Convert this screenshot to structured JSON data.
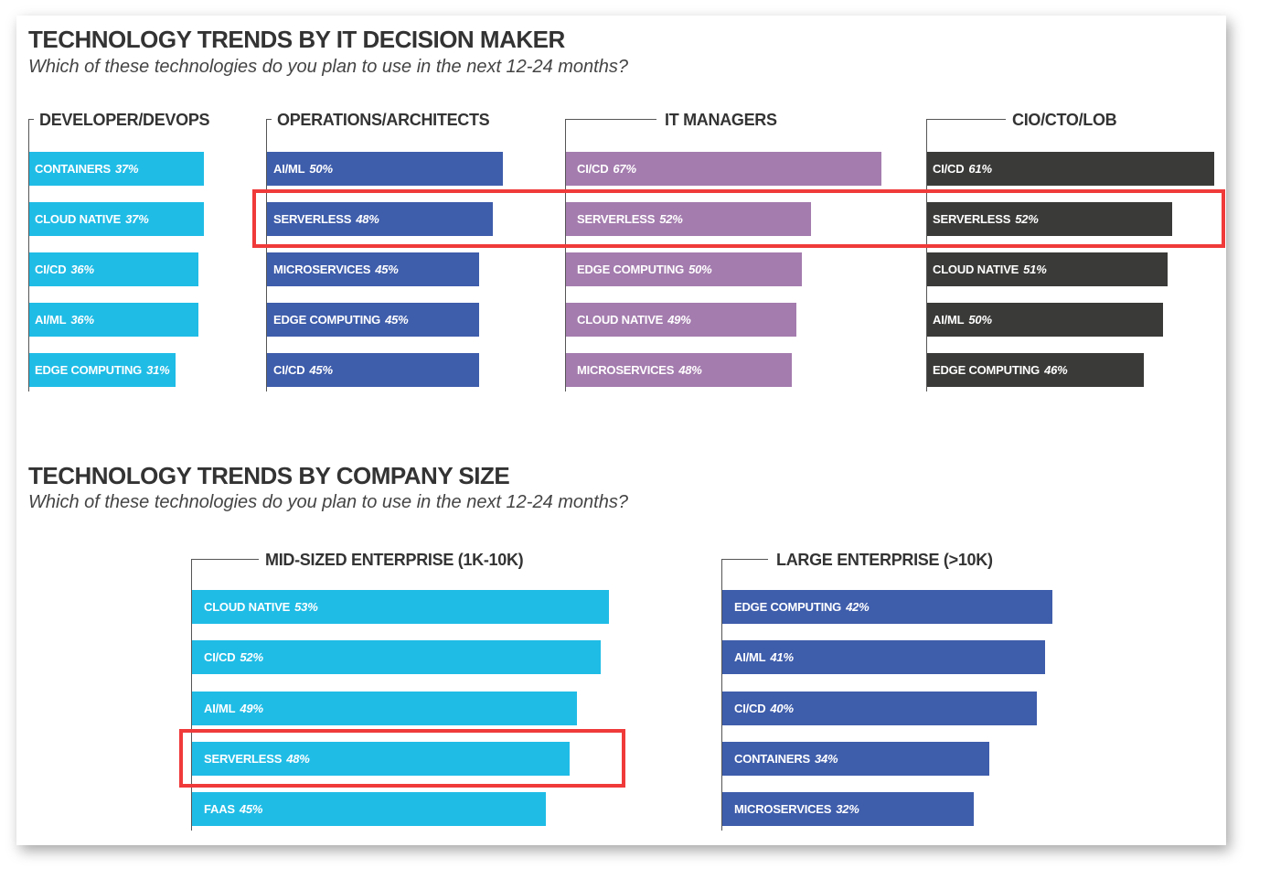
{
  "sections": [
    {
      "title": "TECHNOLOGY TRENDS BY IT DECISION MAKER",
      "subtitle": "Which of these technologies do you plan to use in the next 12-24 months?"
    },
    {
      "title": "TECHNOLOGY TRENDS BY COMPANY SIZE",
      "subtitle": "Which of these technologies do you plan to use in the next 12-24 months?"
    }
  ],
  "colors": {
    "developer": "#1fbce6",
    "operations": "#3e5dab",
    "it_managers": "#a47cae",
    "cio": "#3a3a38",
    "mid_sized": "#1fbce6",
    "large": "#3e5dab",
    "highlight": "#f03a3a"
  },
  "chart_data": [
    {
      "type": "bar",
      "orientation": "horizontal",
      "title": "DEVELOPER/DEVOPS",
      "categories": [
        "CONTAINERS",
        "CLOUD NATIVE",
        "CI/CD",
        "AI/ML",
        "EDGE COMPUTING"
      ],
      "values": [
        37,
        37,
        36,
        36,
        31
      ],
      "labels": [
        "37%",
        "37%",
        "36%",
        "36%",
        "31%"
      ],
      "color": "#1fbce6"
    },
    {
      "type": "bar",
      "orientation": "horizontal",
      "title": "OPERATIONS/ARCHITECTS",
      "categories": [
        "AI/ML",
        "SERVERLESS",
        "MICROSERVICES",
        "EDGE COMPUTING",
        "CI/CD"
      ],
      "values": [
        50,
        48,
        45,
        45,
        45
      ],
      "labels": [
        "50%",
        "48%",
        "45%",
        "45%",
        "45%"
      ],
      "color": "#3e5dab"
    },
    {
      "type": "bar",
      "orientation": "horizontal",
      "title": "IT MANAGERS",
      "categories": [
        "CI/CD",
        "SERVERLESS",
        "EDGE COMPUTING",
        "CLOUD NATIVE",
        "MICROSERVICES"
      ],
      "values": [
        67,
        52,
        50,
        49,
        48
      ],
      "labels": [
        "67%",
        "52%",
        "50%",
        "49%",
        "48%"
      ],
      "color": "#a47cae"
    },
    {
      "type": "bar",
      "orientation": "horizontal",
      "title": "CIO/CTO/LOB",
      "categories": [
        "CI/CD",
        "SERVERLESS",
        "CLOUD NATIVE",
        "AI/ML",
        "EDGE COMPUTING"
      ],
      "values": [
        61,
        52,
        51,
        50,
        46
      ],
      "labels": [
        "61%",
        "52%",
        "51%",
        "50%",
        "46%"
      ],
      "color": "#3a3a38"
    },
    {
      "type": "bar",
      "orientation": "horizontal",
      "title": "MID-SIZED ENTERPRISE (1K-10K)",
      "categories": [
        "CLOUD NATIVE",
        "CI/CD",
        "AI/ML",
        "SERVERLESS",
        "FAAS"
      ],
      "values": [
        53,
        52,
        49,
        48,
        45
      ],
      "labels": [
        "53%",
        "52%",
        "49%",
        "48%",
        "45%"
      ],
      "color": "#1fbce6"
    },
    {
      "type": "bar",
      "orientation": "horizontal",
      "title": "LARGE ENTERPRISE (>10K)",
      "categories": [
        "EDGE COMPUTING",
        "AI/ML",
        "CI/CD",
        "CONTAINERS",
        "MICROSERVICES"
      ],
      "values": [
        42,
        41,
        40,
        34,
        32
      ],
      "labels": [
        "42%",
        "41%",
        "40%",
        "34%",
        "32%"
      ],
      "color": "#3e5dab"
    }
  ]
}
